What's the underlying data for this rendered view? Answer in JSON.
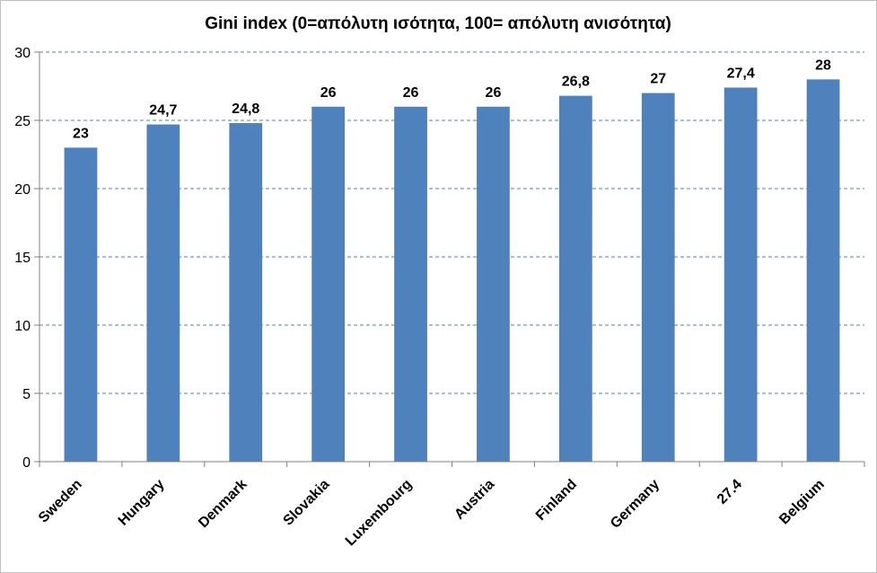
{
  "chart_data": {
    "type": "bar",
    "title": "Gini index (0=απόλυτη ισότητα, 100= απόλυτη ανισότητα)",
    "categories": [
      "Sweden",
      "Hungary",
      "Denmark",
      "Slovakia",
      "Luxembourg",
      "Austria",
      "Finland",
      "Germany",
      "27.4",
      "Belgium"
    ],
    "values": [
      23,
      24.7,
      24.8,
      26,
      26,
      26,
      26.8,
      27,
      27.4,
      28
    ],
    "data_labels": [
      "23",
      "24,7",
      "24,8",
      "26",
      "26",
      "26",
      "26,8",
      "27",
      "27,4",
      "28"
    ],
    "y_ticks": [
      "0",
      "5",
      "10",
      "15",
      "20",
      "25",
      "30"
    ],
    "ylim": [
      0,
      30
    ],
    "grid": "horizontal dashed",
    "legend": "none",
    "bar_color": "#4F81BD",
    "grid_color": "#4F81BD"
  }
}
